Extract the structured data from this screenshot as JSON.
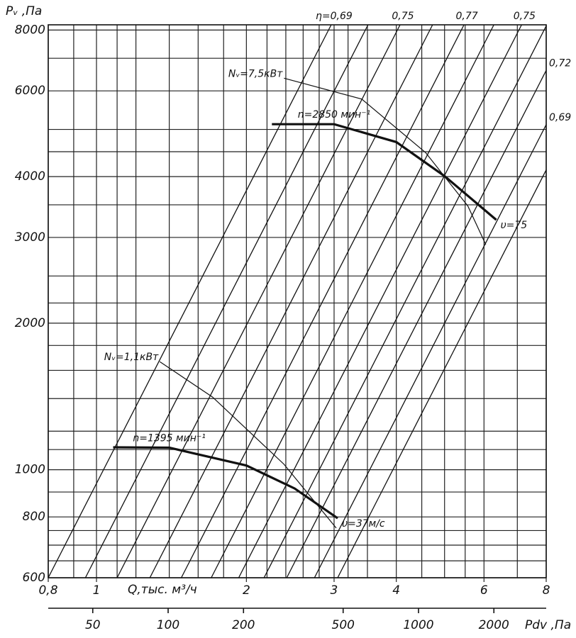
{
  "chart_data": {
    "type": "line",
    "xscale": "log",
    "yscale": "log",
    "ylabel": "Pᵥ ,Па",
    "xlabel": "Q,тыс. м³/ч",
    "xlim": [
      0.8,
      8
    ],
    "ylim": [
      600,
      8200
    ],
    "xticks": [
      {
        "value": 0.8,
        "label": "0,8"
      },
      1,
      2,
      3,
      4,
      6,
      8
    ],
    "yticks": [
      600,
      800,
      1000,
      2000,
      3000,
      4000,
      6000,
      8000
    ],
    "xgrid": [
      0.8,
      0.9,
      1,
      1.1,
      1.2,
      1.4,
      1.6,
      1.8,
      2,
      2.2,
      2.4,
      2.6,
      2.8,
      3,
      3.2,
      3.5,
      4,
      4.5,
      5,
      5.5,
      6,
      7,
      8
    ],
    "ygrid": [
      600,
      650,
      700,
      750,
      800,
      900,
      1000,
      1100,
      1200,
      1400,
      1600,
      1800,
      2000,
      2200,
      2500,
      3000,
      3500,
      4000,
      4500,
      5000,
      6000,
      7000,
      8000
    ],
    "x2label": "Pdv ,Па",
    "x2lim": [
      33.2,
      3236
    ],
    "x2ticks": [
      50,
      100,
      200,
      500,
      1000,
      2000
    ],
    "color": "#111111",
    "series": [
      {
        "name": "n=1395 мин⁻¹",
        "end_label": "υ=37м/с",
        "weight": "bold",
        "x": [
          1.08,
          1.4,
          2.0,
          2.5,
          3.05
        ],
        "values": [
          1112,
          1110,
          1020,
          915,
          795
        ]
      },
      {
        "name": "n=2850 мин⁻¹",
        "end_label": "υ=75",
        "weight": "bold",
        "x": [
          2.25,
          3,
          4,
          5,
          6.35
        ],
        "values": [
          5125,
          5125,
          4710,
          4010,
          3260
        ]
      },
      {
        "name": "Nᵥ=1,1кВт",
        "weight": "thin",
        "x": [
          1.34,
          1.71,
          2.38,
          3.03
        ],
        "values": [
          1667,
          1410,
          1026,
          759
        ]
      },
      {
        "name": "Nᵥ=7,5кВт",
        "weight": "thin",
        "x": [
          2.38,
          3.41,
          4.58,
          5.57,
          6.05
        ],
        "values": [
          6370,
          5770,
          4480,
          3480,
          2900
        ]
      },
      {
        "name": "η=0,69",
        "weight": "line",
        "x": [
          0.8,
          2.96
        ],
        "values": [
          600,
          8200
        ]
      },
      {
        "name": null,
        "weight": "line",
        "x": [
          0.95,
          3.51
        ],
        "values": [
          600,
          8200
        ]
      },
      {
        "name": "0,75",
        "weight": "line",
        "x": [
          1.1,
          4.07
        ],
        "values": [
          600,
          8200
        ]
      },
      {
        "name": null,
        "weight": "line",
        "x": [
          1.28,
          4.73
        ],
        "values": [
          600,
          8200
        ]
      },
      {
        "name": "0,77",
        "weight": "line",
        "x": [
          1.48,
          5.47
        ],
        "values": [
          600,
          8200
        ]
      },
      {
        "name": null,
        "weight": "line",
        "x": [
          1.7,
          6.28
        ],
        "values": [
          600,
          8200
        ]
      },
      {
        "name": "0,75",
        "weight": "line",
        "x": [
          1.93,
          7.14
        ],
        "values": [
          600,
          8200
        ]
      },
      {
        "name": null,
        "weight": "line",
        "x": [
          2.17,
          8
        ],
        "values": [
          600,
          8155
        ]
      },
      {
        "name": "0,72",
        "weight": "line",
        "x": [
          2.41,
          8
        ],
        "values": [
          600,
          6610
        ]
      },
      {
        "name": "0,69",
        "weight": "line",
        "x": [
          2.74,
          8
        ],
        "values": [
          600,
          5115
        ]
      },
      {
        "name": null,
        "weight": "line",
        "x": [
          3.05,
          8
        ],
        "values": [
          600,
          4128
        ]
      }
    ]
  }
}
